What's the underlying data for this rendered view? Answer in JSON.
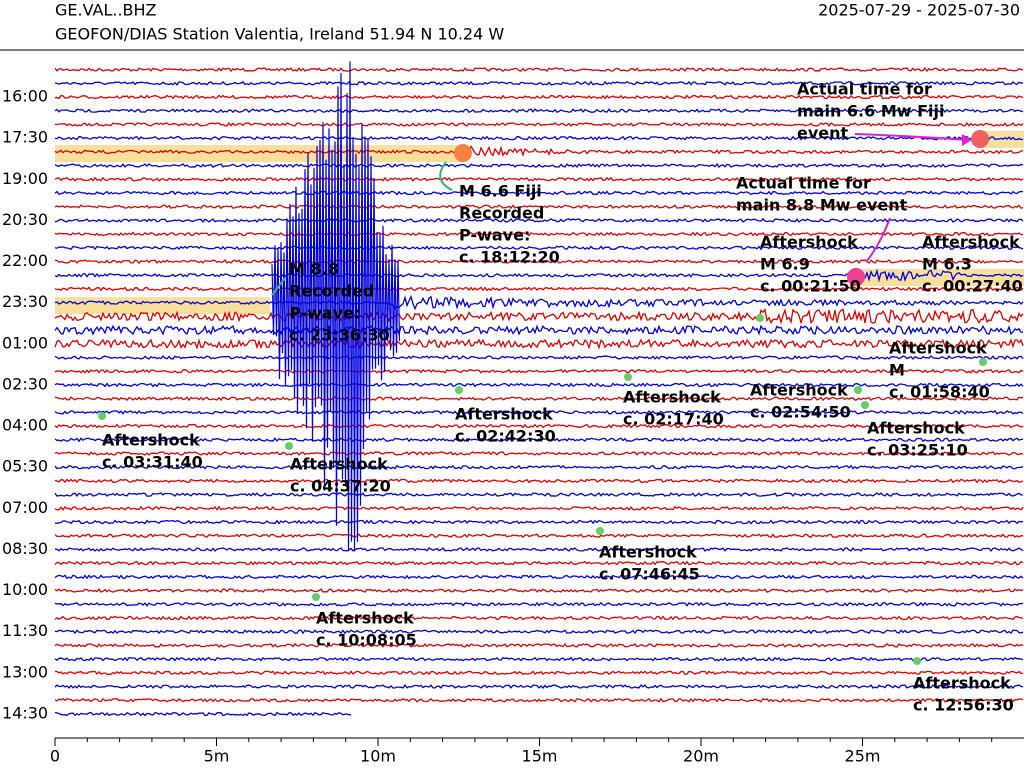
{
  "chart_data": {
    "type": "helicorder",
    "title": "GE.VAL..BHZ",
    "subtitle": "GEOFON/DIAS Station Valentia, Ireland  51.94 N 10.24 W",
    "date_range": "2025-07-29 - 2025-07-30",
    "xlim": [
      0,
      30
    ],
    "xticks": [
      {
        "value": 0,
        "label": "0"
      },
      {
        "value": 5,
        "label": "5m"
      },
      {
        "value": 10,
        "label": "10m"
      },
      {
        "value": 15,
        "label": "15m"
      },
      {
        "value": 20,
        "label": "20m"
      },
      {
        "value": 25,
        "label": "25m"
      }
    ],
    "row_labels": [
      "16:00",
      "17:30",
      "19:00",
      "20:30",
      "22:00",
      "23:30",
      "01:00",
      "02:30",
      "04:00",
      "05:30",
      "07:00",
      "08:30",
      "10:00",
      "11:30",
      "13:00",
      "14:30"
    ],
    "colors": [
      "#e00000",
      "#0000e0"
    ],
    "annotations": [
      {
        "color": "#e020d0",
        "lines": [
          "Actual time for",
          "main 6.6 Mw Fiji",
          "event"
        ]
      },
      {
        "color": "#2e8b57",
        "lines": [
          "M 6.6 Fiji",
          "Recorded",
          "P-wave:",
          "c. 18:12:20"
        ]
      },
      {
        "color": "#e020d0",
        "lines": [
          "Actual time for",
          "main 8.8 Mw event"
        ]
      },
      {
        "color": "#ffffff",
        "lines": [
          "M 8.8",
          "Recorded",
          "P-wave:",
          "c. 23:36:30"
        ]
      },
      {
        "color": "#2e8b57",
        "lines": [
          "Aftershock",
          "M 6.9",
          "c. 00:21:50"
        ]
      },
      {
        "color": "#2e8b57",
        "lines": [
          "Aftershock",
          "M 6.3",
          "c. 00:27:40"
        ]
      },
      {
        "color": "#2e8b57",
        "lines": [
          "Aftershock",
          "M",
          "c. 01:58:40"
        ]
      },
      {
        "color": "#2e8b57",
        "lines": [
          "Aftershock",
          "c. 02:54:50"
        ]
      },
      {
        "color": "#2e8b57",
        "lines": [
          "Aftershock",
          "c. 02:17:40"
        ]
      },
      {
        "color": "#2e8b57",
        "lines": [
          "Aftershock",
          "c. 02:42:30"
        ]
      },
      {
        "color": "#2e8b57",
        "lines": [
          "Aftershock",
          "c. 03:25:10"
        ]
      },
      {
        "color": "#2e8b57",
        "lines": [
          "Aftershock",
          "c. 03:31:40"
        ]
      },
      {
        "color": "#2e8b57",
        "lines": [
          "Aftershock",
          "c. 04:37:20"
        ]
      },
      {
        "color": "#2e8b57",
        "lines": [
          "Aftershock",
          "c. 07:46:45"
        ]
      },
      {
        "color": "#2e8b57",
        "lines": [
          "Aftershock",
          "c. 10:08:05"
        ]
      },
      {
        "color": "#2e8b57",
        "lines": [
          "Aftershock",
          "c. 12:56:30"
        ]
      }
    ]
  }
}
